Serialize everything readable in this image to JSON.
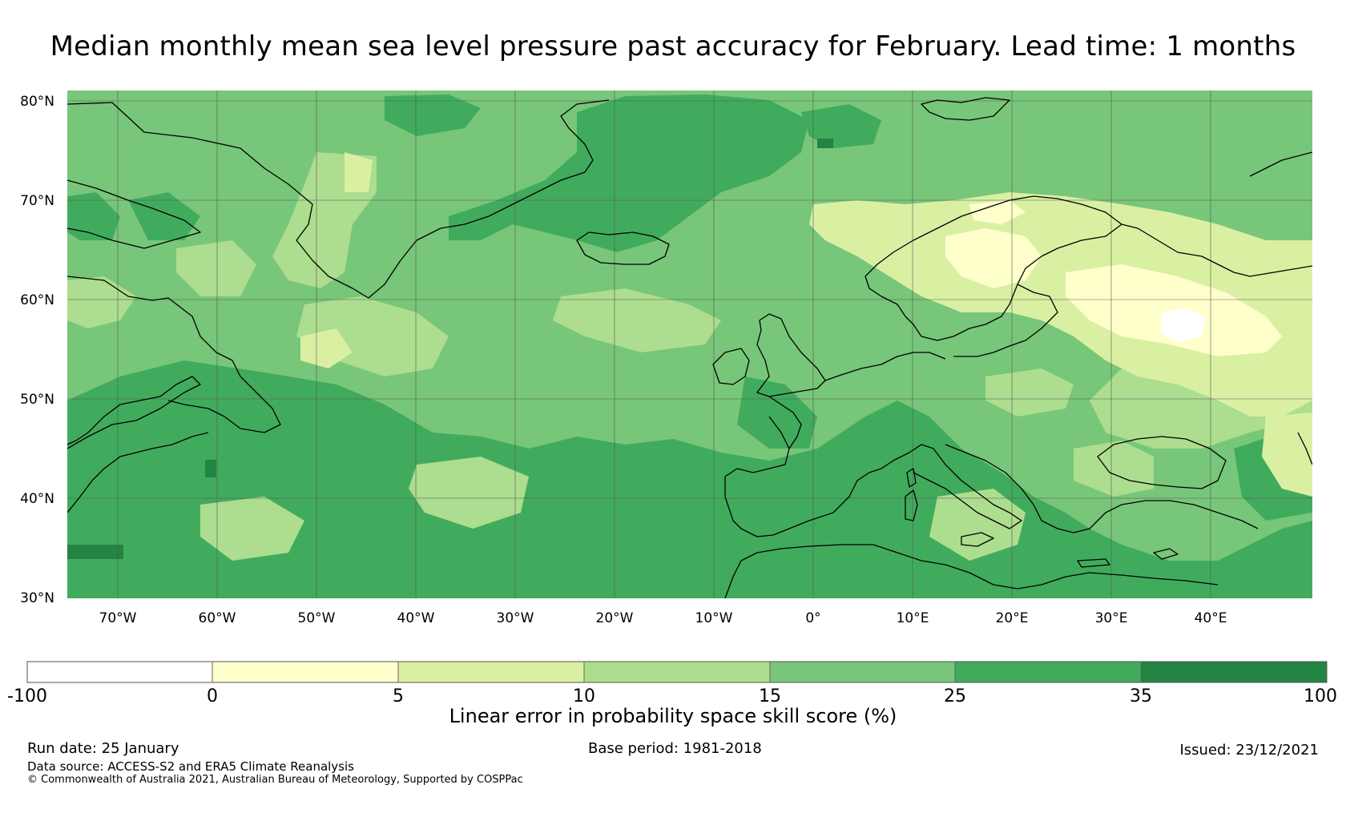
{
  "title": "Median monthly mean sea level pressure past accuracy for February. Lead time: 1 months",
  "map": {
    "lat_labels": [
      "80°N",
      "70°N",
      "60°N",
      "50°N",
      "40°N",
      "30°N"
    ],
    "lon_labels": [
      "70°W",
      "60°W",
      "50°W",
      "40°W",
      "30°W",
      "20°W",
      "10°W",
      "0°",
      "10°E",
      "20°E",
      "30°E",
      "40°E"
    ],
    "colors": {
      "gt35": "#238443",
      "c25_35": "#41ab5d",
      "c15_25": "#78c679",
      "c10_15": "#addd8e",
      "c5_10": "#d9f0a3",
      "c0_5": "#ffffcc",
      "neg": "#ffffff",
      "coast": "#000000",
      "grid": "#555555"
    }
  },
  "colorbar": {
    "tick_labels": [
      "-100",
      "0",
      "5",
      "10",
      "15",
      "25",
      "35",
      "100"
    ],
    "colors": [
      "#ffffff",
      "#ffffcc",
      "#d9f0a3",
      "#addd8e",
      "#78c679",
      "#41ab5d",
      "#238443"
    ],
    "label": "Linear error in probability space skill score (%)"
  },
  "footer": {
    "run_date": "Run date: 25 January",
    "base_period": "Base period: 1981-2018",
    "issued": "Issued: 23/12/2021",
    "data_source": "Data source: ACCESS-S2 and ERA5 Climate Reanalysis",
    "copyright": "© Commonwealth of Australia 2021, Australian Bureau of Meteorology, Supported by COSPPac"
  }
}
